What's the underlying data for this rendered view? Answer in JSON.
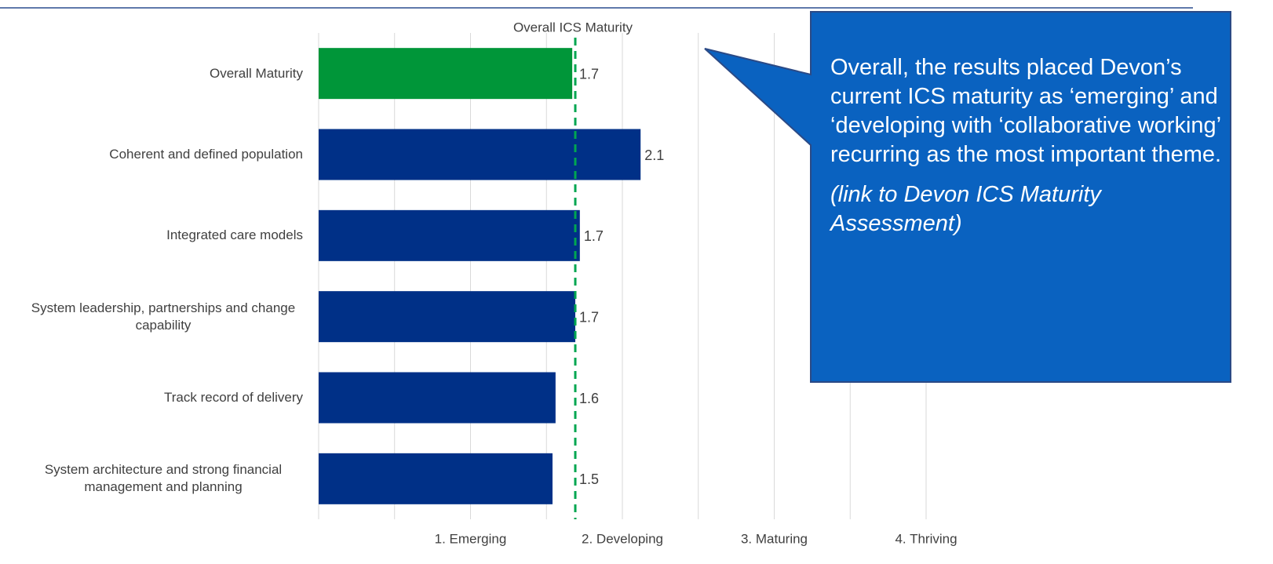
{
  "chart_data": {
    "type": "hbar",
    "categories": [
      "Overall Maturity",
      "Coherent and defined population",
      "Integrated care models",
      "System leadership, partnerships and change capability",
      "Track record of delivery",
      "System architecture and strong financial management and planning"
    ],
    "values": [
      1.67,
      2.12,
      1.72,
      1.69,
      1.56,
      1.54
    ],
    "value_labels": [
      "1.7",
      "2.1",
      "1.7",
      "1.7",
      "1.6",
      "1.5"
    ],
    "colors": [
      "#009639",
      "#003087",
      "#003087",
      "#003087",
      "#003087",
      "#003087"
    ],
    "xlim": [
      0,
      4
    ],
    "xticks": [
      {
        "value": 1,
        "label": "1. Emerging"
      },
      {
        "value": 2,
        "label": "2. Developing"
      },
      {
        "value": 3,
        "label": "3. Maturing"
      },
      {
        "value": 4,
        "label": "4. Thriving"
      }
    ],
    "xgrid": [
      0,
      0.5,
      1,
      1.5,
      2,
      2.5,
      3,
      3.5,
      4
    ],
    "grid": true,
    "reference_line": {
      "value": 1.69,
      "label": "Overall ICS Maturity",
      "color": "#00a651"
    }
  },
  "callout": {
    "text": "Overall, the results placed Devon’s current ICS maturity as ‘emerging’ and ‘developing with ‘collaborative working’ recurring as the most important theme.",
    "link": "(link to Devon ICS Maturity Assessment)"
  }
}
